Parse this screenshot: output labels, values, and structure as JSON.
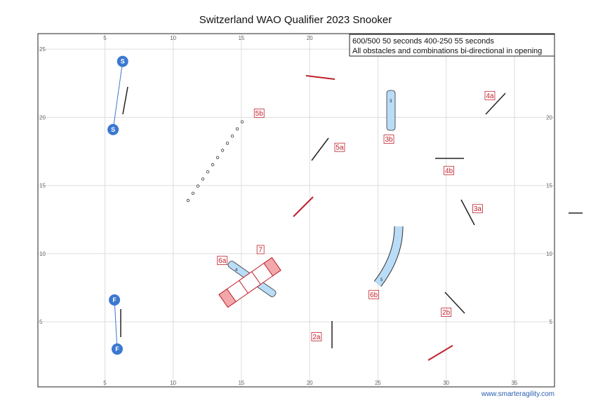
{
  "title": "Switzerland WAO Qualifier 2023 Snooker",
  "info_lines": [
    "600/500 50 seconds 400-250 55 seconds",
    "All obstacles and combinations bi-directional in opening"
  ],
  "credit": "www.smarteragility.com",
  "colors": {
    "jump": "#c0212a",
    "tunnel": "#b9dcf7",
    "handler": "#3a78d1",
    "grid": "#dddddd",
    "label": "#c0212a"
  },
  "x_ticks": [
    "5",
    "10",
    "15",
    "20",
    "25",
    "30",
    "35"
  ],
  "y_ticks": [
    "25",
    "20",
    "15",
    "10",
    "5"
  ],
  "handlers": [
    {
      "text": "S",
      "x": 6.3,
      "y": 24.1
    },
    {
      "text": "S",
      "x": 5.6,
      "y": 19.1
    },
    {
      "text": "F",
      "x": 5.7,
      "y": 6.6
    },
    {
      "text": "F",
      "x": 5.9,
      "y": 3.0
    }
  ],
  "labels": [
    {
      "text": "5b",
      "x": 16.3,
      "y": 20.3
    },
    {
      "text": "5a",
      "x": 22.2,
      "y": 17.8
    },
    {
      "text": "3b",
      "x": 25.8,
      "y": 18.4
    },
    {
      "text": "4a",
      "x": 33.2,
      "y": 21.6
    },
    {
      "text": "4b",
      "x": 30.2,
      "y": 16.1
    },
    {
      "text": "3a",
      "x": 32.3,
      "y": 13.3
    },
    {
      "text": "6a",
      "x": 13.6,
      "y": 9.5
    },
    {
      "text": "7",
      "x": 16.4,
      "y": 10.3
    },
    {
      "text": "6b",
      "x": 24.7,
      "y": 7.0
    },
    {
      "text": "2b",
      "x": 30.0,
      "y": 5.7
    },
    {
      "text": "2a",
      "x": 20.5,
      "y": 3.9
    }
  ],
  "obstacle_texts": {
    "tunnel_3": "3",
    "tunnel_4": "4",
    "tunnel_5": "5"
  }
}
